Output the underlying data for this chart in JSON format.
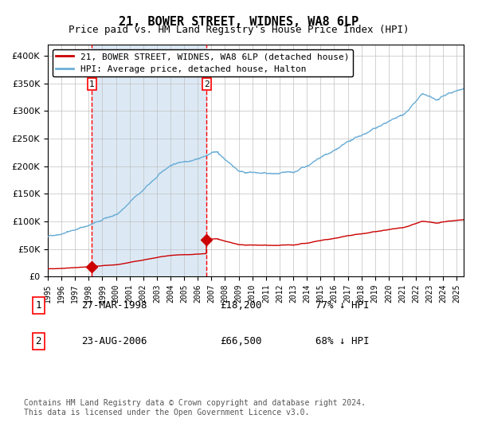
{
  "title": "21, BOWER STREET, WIDNES, WA8 6LP",
  "subtitle": "Price paid vs. HM Land Registry's House Price Index (HPI)",
  "hpi_label": "HPI: Average price, detached house, Halton",
  "property_label": "21, BOWER STREET, WIDNES, WA8 6LP (detached house)",
  "transaction1_date": "27-MAR-1998",
  "transaction1_price": 18200,
  "transaction1_hpi": "77% ↓ HPI",
  "transaction2_date": "23-AUG-2006",
  "transaction2_price": 66500,
  "transaction2_hpi": "68% ↓ HPI",
  "transaction1_year": 1998.23,
  "transaction2_year": 2006.64,
  "hpi_color": "#6baed6",
  "property_color": "#cc0000",
  "bg_fill_color": "#dce9f5",
  "grid_color": "#c0c0c0",
  "ylim": [
    0,
    420000
  ],
  "xlim_start": 1995,
  "xlim_end": 2025.5,
  "footnote": "Contains HM Land Registry data © Crown copyright and database right 2024.\nThis data is licensed under the Open Government Licence v3.0."
}
